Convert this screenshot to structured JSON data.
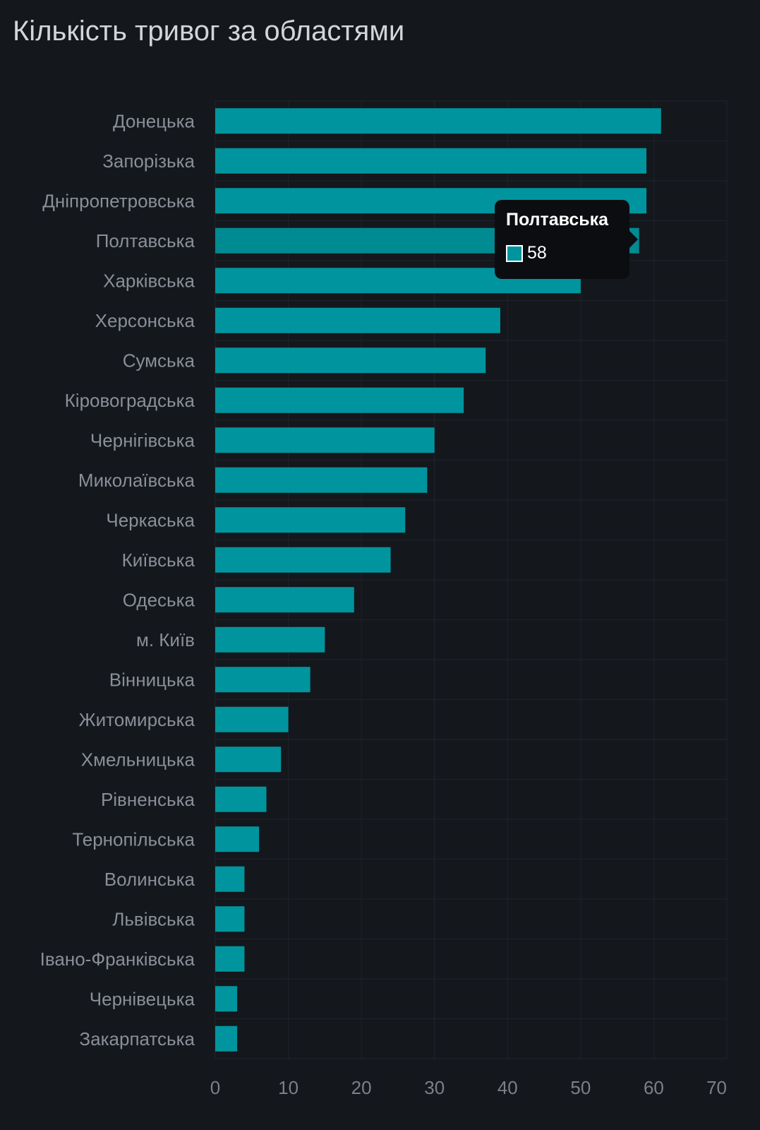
{
  "chart_data": {
    "type": "bar",
    "orientation": "horizontal",
    "title": "Кількість тривог за областями",
    "categories": [
      "Донецька",
      "Запорізька",
      "Дніпропетровська",
      "Полтавська",
      "Харківська",
      "Херсонська",
      "Сумська",
      "Кіровоградська",
      "Чернігівська",
      "Миколаївська",
      "Черкаська",
      "Київська",
      "Одеська",
      "м. Київ",
      "Вінницька",
      "Житомирська",
      "Хмельницька",
      "Рівненська",
      "Тернопільська",
      "Волинська",
      "Львівська",
      "Івано-Франківська",
      "Чернівецька",
      "Закарпатська"
    ],
    "values": [
      61,
      59,
      59,
      58,
      50,
      39,
      37,
      34,
      30,
      29,
      26,
      24,
      19,
      15,
      13,
      10,
      9,
      7,
      6,
      4,
      4,
      4,
      3,
      3
    ],
    "xlim": [
      0,
      70
    ],
    "xticks": [
      0,
      10,
      20,
      30,
      40,
      50,
      60,
      70
    ],
    "grid": true,
    "bar_color": "#00959e",
    "highlight_color": "#008a91",
    "highlight_index": 3
  },
  "tooltip": {
    "title": "Полтавська",
    "value": "58",
    "swatch_color": "#00959e"
  }
}
